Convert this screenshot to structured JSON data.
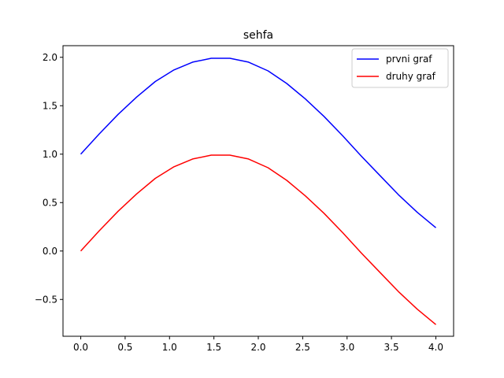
{
  "chart_data": {
    "type": "line",
    "title": "sehfa",
    "xlabel": "",
    "ylabel": "",
    "xlim": [
      -0.2,
      4.2
    ],
    "ylim": [
      -0.88,
      2.12
    ],
    "xticks": [
      0.0,
      0.5,
      1.0,
      1.5,
      2.0,
      2.5,
      3.0,
      3.5,
      4.0
    ],
    "xtick_labels": [
      "0.0",
      "0.5",
      "1.0",
      "1.5",
      "2.0",
      "2.5",
      "3.0",
      "3.5",
      "4.0"
    ],
    "yticks": [
      -0.5,
      0.0,
      0.5,
      1.0,
      1.5,
      2.0
    ],
    "ytick_labels": [
      "−0.5",
      "0.0",
      "0.5",
      "1.0",
      "1.5",
      "2.0"
    ],
    "grid": false,
    "legend_position": "top-right",
    "series": [
      {
        "name": "prvni graf",
        "color": "#0000ff",
        "x": [
          0.0,
          0.21,
          0.42,
          0.63,
          0.84,
          1.05,
          1.26,
          1.47,
          1.68,
          1.89,
          2.11,
          2.32,
          2.53,
          2.74,
          2.95,
          3.16,
          3.37,
          3.58,
          3.79,
          4.0
        ],
        "y": [
          1.0,
          1.21,
          1.41,
          1.59,
          1.75,
          1.87,
          1.95,
          1.99,
          1.99,
          1.95,
          1.86,
          1.73,
          1.57,
          1.39,
          1.19,
          0.98,
          0.78,
          0.58,
          0.4,
          0.24
        ]
      },
      {
        "name": "druhy graf",
        "color": "#ff0000",
        "x": [
          0.0,
          0.21,
          0.42,
          0.63,
          0.84,
          1.05,
          1.26,
          1.47,
          1.68,
          1.89,
          2.11,
          2.32,
          2.53,
          2.74,
          2.95,
          3.16,
          3.37,
          3.58,
          3.79,
          4.0
        ],
        "y": [
          0.0,
          0.21,
          0.41,
          0.59,
          0.75,
          0.87,
          0.95,
          0.99,
          0.99,
          0.95,
          0.86,
          0.73,
          0.57,
          0.39,
          0.19,
          -0.02,
          -0.22,
          -0.42,
          -0.6,
          -0.76
        ]
      }
    ]
  }
}
